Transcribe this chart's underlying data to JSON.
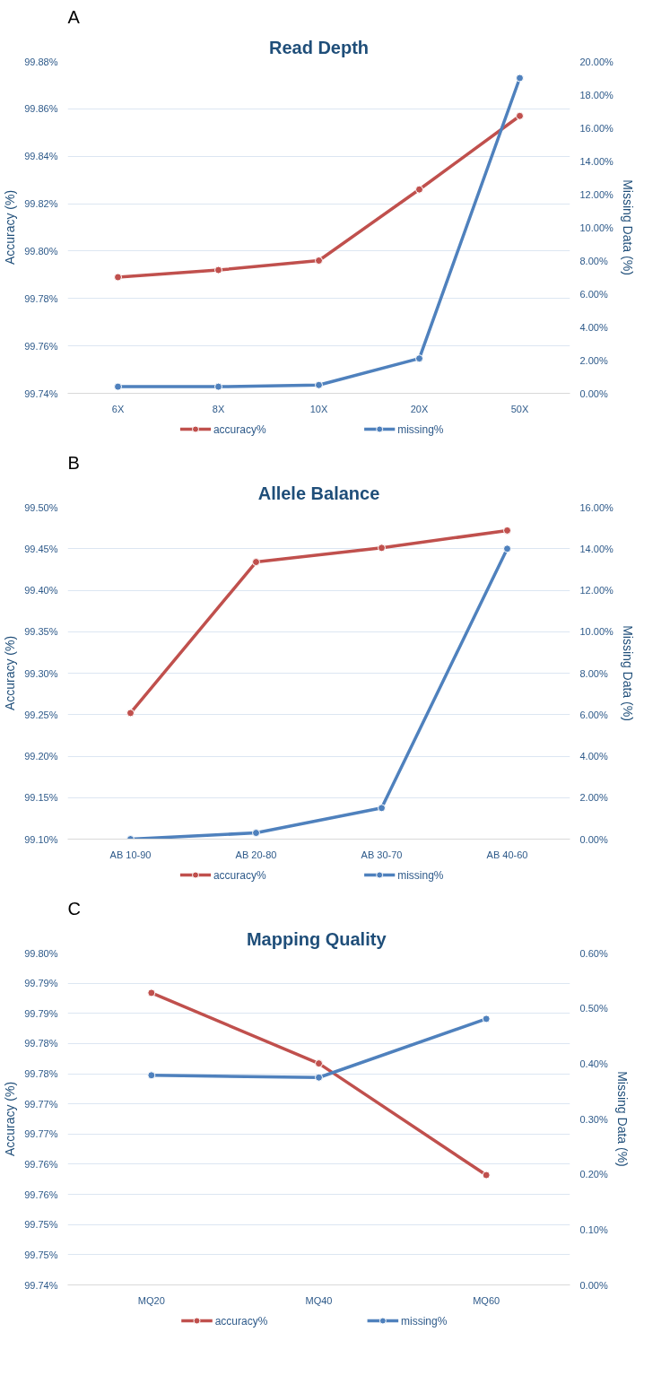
{
  "chart_data": [
    {
      "type": "line",
      "title": "Read Depth",
      "ylabel": "Accuracy (%)",
      "y2label": "Missing Data (%)",
      "annotations": [
        "A"
      ],
      "categories": [
        "6X",
        "8X",
        "10X",
        "20X",
        "50X"
      ],
      "series": [
        {
          "name": "accuracy%",
          "color": "#c0504d",
          "values": [
            99.789,
            99.792,
            99.796,
            99.826,
            99.857
          ]
        },
        {
          "name": "missing%",
          "color": "#4f81bd",
          "axis": "y2",
          "values": [
            0.4,
            0.4,
            0.5,
            2.1,
            19.0
          ]
        }
      ],
      "ylim": [
        99.74,
        99.88
      ],
      "yticks": [
        {
          "value": 99.74,
          "label": "99.74%"
        },
        {
          "value": 99.76,
          "label": "99.76%"
        },
        {
          "value": 99.78,
          "label": "99.78%"
        },
        {
          "value": 99.8,
          "label": "99.80%"
        },
        {
          "value": 99.82,
          "label": "99.82%"
        },
        {
          "value": 99.84,
          "label": "99.84%"
        },
        {
          "value": 99.86,
          "label": "99.86%"
        },
        {
          "value": 99.88,
          "label": "99.88%"
        }
      ],
      "y2lim": [
        0,
        20
      ],
      "y2ticks": [
        {
          "value": 0,
          "label": "0.00%"
        },
        {
          "value": 2,
          "label": "2.00%"
        },
        {
          "value": 4,
          "label": "4.00%"
        },
        {
          "value": 6,
          "label": "6.00%"
        },
        {
          "value": 8,
          "label": "8.00%"
        },
        {
          "value": 10,
          "label": "10.00%"
        },
        {
          "value": 12,
          "label": "12.00%"
        },
        {
          "value": 14,
          "label": "14.00%"
        },
        {
          "value": 16,
          "label": "16.00%"
        },
        {
          "value": 18,
          "label": "18.00%"
        },
        {
          "value": 20,
          "label": "20.00%"
        }
      ],
      "grid": "y",
      "legend": "bottom",
      "marker": "circle",
      "line_style": "solid"
    },
    {
      "type": "line",
      "title": "Allele Balance",
      "ylabel": "Accuracy (%)",
      "y2label": "Missing Data (%)",
      "annotations": [
        "B"
      ],
      "categories": [
        "AB 10-90",
        "AB 20-80",
        "AB 30-70",
        "AB 40-60"
      ],
      "series": [
        {
          "name": "accuracy%",
          "color": "#c0504d",
          "values": [
            99.252,
            99.434,
            99.451,
            99.472
          ]
        },
        {
          "name": "missing%",
          "color": "#4f81bd",
          "axis": "y2",
          "values": [
            0.0,
            0.3,
            1.5,
            14.0
          ]
        }
      ],
      "ylim": [
        99.1,
        99.5
      ],
      "yticks": [
        {
          "value": 99.1,
          "label": "99.10%"
        },
        {
          "value": 99.15,
          "label": "99.15%"
        },
        {
          "value": 99.2,
          "label": "99.20%"
        },
        {
          "value": 99.25,
          "label": "99.25%"
        },
        {
          "value": 99.3,
          "label": "99.30%"
        },
        {
          "value": 99.35,
          "label": "99.35%"
        },
        {
          "value": 99.4,
          "label": "99.40%"
        },
        {
          "value": 99.45,
          "label": "99.45%"
        },
        {
          "value": 99.5,
          "label": "99.50%"
        }
      ],
      "y2lim": [
        0,
        16
      ],
      "y2ticks": [
        {
          "value": 0,
          "label": "0.00%"
        },
        {
          "value": 2,
          "label": "2.00%"
        },
        {
          "value": 4,
          "label": "4.00%"
        },
        {
          "value": 6,
          "label": "6.00%"
        },
        {
          "value": 8,
          "label": "8.00%"
        },
        {
          "value": 10,
          "label": "10.00%"
        },
        {
          "value": 12,
          "label": "12.00%"
        },
        {
          "value": 14,
          "label": "14.00%"
        },
        {
          "value": 16,
          "label": "16.00%"
        }
      ],
      "grid": "y",
      "legend": "bottom",
      "marker": "circle",
      "line_style": "solid"
    },
    {
      "type": "line",
      "title": "Mapping  Quality",
      "ylabel": "Accuracy (%)",
      "y2label": "Missing Data (%)",
      "annotations": [
        "C"
      ],
      "categories": [
        "MQ20",
        "MQ40",
        "MQ60"
      ],
      "series": [
        {
          "name": "accuracy%",
          "color": "#c0504d",
          "values": [
            99.7884,
            99.7767,
            99.7582
          ]
        },
        {
          "name": "missing%",
          "color": "#4f81bd",
          "axis": "y2",
          "values": [
            0.379,
            0.375,
            0.481
          ]
        }
      ],
      "ylim": [
        99.74,
        99.795
      ],
      "yticks": [
        {
          "value": 99.74,
          "label": "99.74%"
        },
        {
          "value": 99.745,
          "label": "99.75%"
        },
        {
          "value": 99.75,
          "label": "99.75%"
        },
        {
          "value": 99.755,
          "label": "99.76%"
        },
        {
          "value": 99.76,
          "label": "99.76%"
        },
        {
          "value": 99.765,
          "label": "99.77%"
        },
        {
          "value": 99.77,
          "label": "99.77%"
        },
        {
          "value": 99.775,
          "label": "99.78%"
        },
        {
          "value": 99.78,
          "label": "99.78%"
        },
        {
          "value": 99.785,
          "label": "99.79%"
        },
        {
          "value": 99.79,
          "label": "99.79%"
        },
        {
          "value": 99.795,
          "label": "99.80%"
        }
      ],
      "y2lim": [
        0,
        0.6
      ],
      "y2ticks": [
        {
          "value": 0,
          "label": "0.00%"
        },
        {
          "value": 0.1,
          "label": "0.10%"
        },
        {
          "value": 0.2,
          "label": "0.20%"
        },
        {
          "value": 0.3,
          "label": "0.30%"
        },
        {
          "value": 0.4,
          "label": "0.40%"
        },
        {
          "value": 0.5,
          "label": "0.50%"
        },
        {
          "value": 0.6,
          "label": "0.60%"
        }
      ],
      "grid": "y",
      "legend": "bottom",
      "marker": "circle",
      "line_style": "solid"
    }
  ]
}
